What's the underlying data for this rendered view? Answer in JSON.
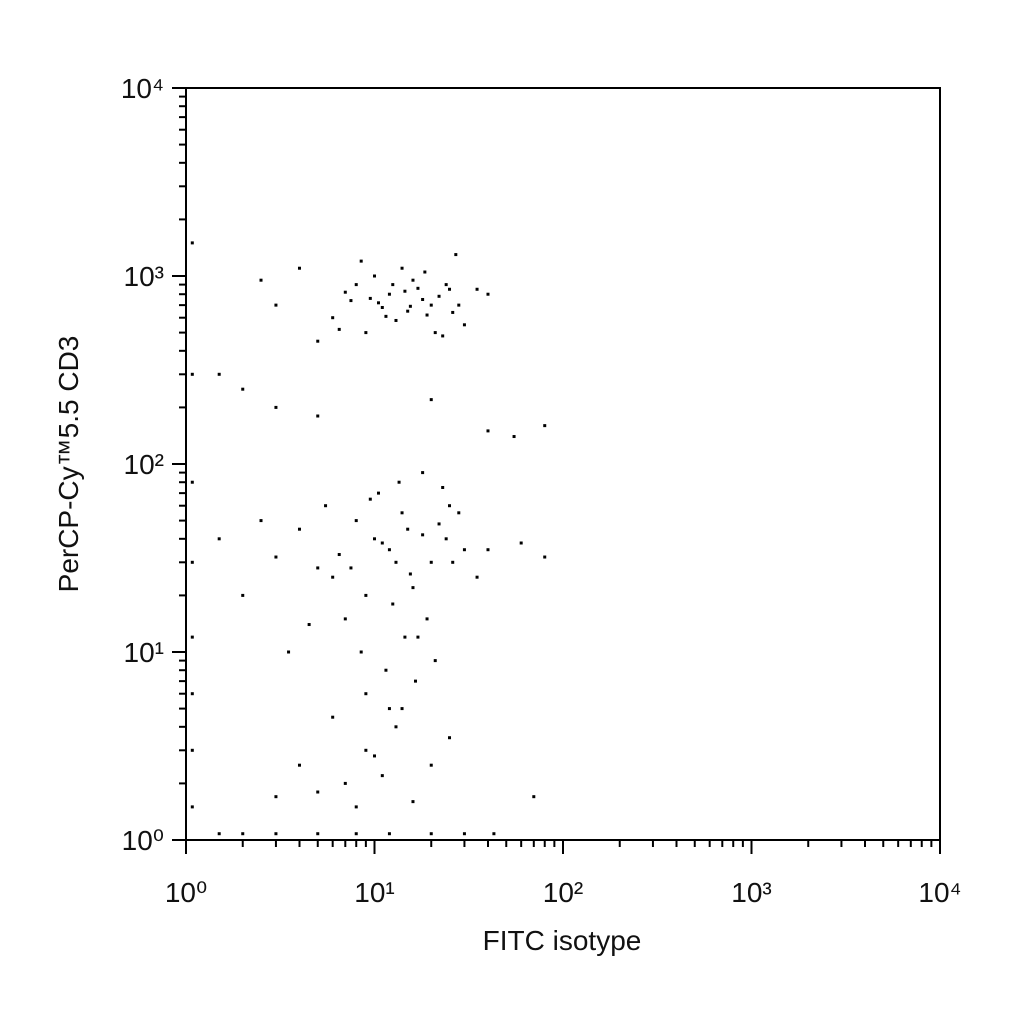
{
  "chart_data": {
    "type": "scatter",
    "x_label": "FITC isotype",
    "y_label": "PerCP-Cy™5.5 CD3",
    "log_x": true,
    "log_y": true,
    "color": "#000000",
    "xlim": [
      1,
      10000
    ],
    "ylim": [
      1,
      10000
    ],
    "xticks": [
      {
        "value": 1,
        "label": "10⁰"
      },
      {
        "value": 10,
        "label": "10¹"
      },
      {
        "value": 100,
        "label": "10²"
      },
      {
        "value": 1000,
        "label": "10³"
      },
      {
        "value": 10000,
        "label": "10⁴"
      }
    ],
    "yticks": [
      {
        "value": 1,
        "label": "10⁰"
      },
      {
        "value": 10,
        "label": "10¹"
      },
      {
        "value": 100,
        "label": "10²"
      },
      {
        "value": 1000,
        "label": "10³"
      },
      {
        "value": 10000,
        "label": "10⁴"
      }
    ],
    "xminorticks": [
      2,
      3,
      4,
      5,
      6,
      7,
      8,
      9,
      20,
      30,
      40,
      50,
      60,
      70,
      80,
      90,
      200,
      300,
      400,
      500,
      600,
      700,
      800,
      900,
      2000,
      3000,
      4000,
      5000,
      6000,
      7000,
      8000,
      9000
    ],
    "yminorticks": [
      2,
      3,
      4,
      5,
      6,
      7,
      8,
      9,
      20,
      30,
      40,
      50,
      60,
      70,
      80,
      90,
      200,
      300,
      400,
      500,
      600,
      700,
      800,
      900,
      2000,
      3000,
      4000,
      5000,
      6000,
      7000,
      8000,
      9000
    ],
    "x": [
      12,
      15,
      8,
      20,
      25,
      10,
      6,
      18,
      30,
      9,
      14,
      22,
      7,
      11,
      16,
      5,
      28,
      13,
      19,
      24,
      8.5,
      17,
      10.5,
      21,
      35,
      4,
      26,
      12.5,
      9.5,
      15.5,
      3,
      2.5,
      6.5,
      40,
      18.5,
      23,
      11.5,
      14.5,
      7.5,
      27,
      1.5,
      2,
      3,
      5,
      20,
      40,
      55,
      80,
      10,
      12,
      8,
      15,
      20,
      6,
      25,
      9,
      14,
      11,
      18,
      5,
      30,
      7,
      13,
      16,
      22,
      4,
      3,
      35,
      10.5,
      12.5,
      9.5,
      17,
      24,
      6.5,
      8.5,
      28,
      2.5,
      2,
      1.5,
      19,
      11.5,
      14.5,
      7.5,
      21,
      26,
      5.5,
      13.5,
      15.5,
      40,
      60,
      80,
      3.5,
      4.5,
      16.5,
      9,
      12,
      18,
      23,
      4,
      5,
      7,
      9,
      11,
      13,
      16,
      20,
      25,
      8,
      10,
      3,
      14,
      6,
      70,
      1.08,
      1.08,
      1.08,
      1.08,
      1.08,
      1.08,
      1.08,
      1.08,
      1.5,
      2,
      3,
      5,
      8,
      12,
      20,
      30,
      43
    ],
    "y": [
      800,
      650,
      900,
      700,
      850,
      1000,
      600,
      750,
      550,
      500,
      1100,
      780,
      820,
      680,
      950,
      450,
      700,
      580,
      620,
      900,
      1200,
      860,
      720,
      500,
      850,
      1100,
      640,
      900,
      760,
      690,
      700,
      950,
      520,
      800,
      1050,
      480,
      610,
      830,
      740,
      1300,
      300,
      250,
      200,
      180,
      220,
      150,
      140,
      160,
      40,
      35,
      50,
      45,
      30,
      25,
      60,
      20,
      55,
      38,
      42,
      28,
      35,
      15,
      30,
      22,
      48,
      45,
      32,
      25,
      70,
      18,
      65,
      12,
      40,
      33,
      10,
      55,
      50,
      20,
      40,
      15,
      8,
      12,
      28,
      9,
      30,
      60,
      80,
      26,
      35,
      38,
      32,
      10,
      14,
      7,
      6,
      5,
      90,
      75,
      2.5,
      1.8,
      2,
      3,
      2.2,
      4,
      1.6,
      2.5,
      3.5,
      1.5,
      2.8,
      1.7,
      5,
      4.5,
      1.7,
      1.5,
      3,
      6,
      12,
      30,
      80,
      300,
      1500,
      1.08,
      1.08,
      1.08,
      1.08,
      1.08,
      1.08,
      1.08,
      1.08,
      1.08
    ]
  }
}
